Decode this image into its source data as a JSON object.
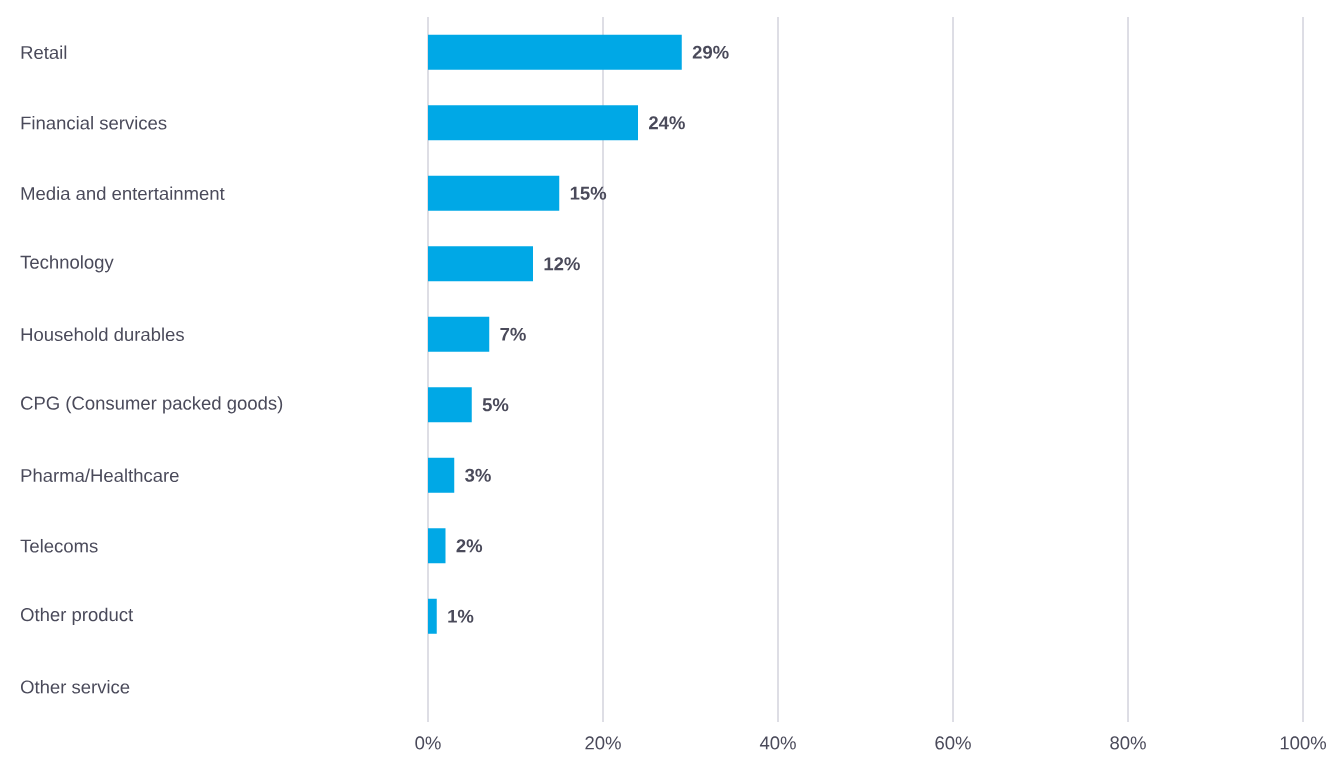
{
  "chart_data": {
    "type": "bar",
    "orientation": "horizontal",
    "categories": [
      "Retail",
      "Financial services",
      "Media and entertainment",
      "Technology",
      "Household durables",
      "CPG (Consumer packed goods)",
      "Pharma/Healthcare",
      "Telecoms",
      "Other product",
      "Other service"
    ],
    "values": [
      29,
      24,
      15,
      12,
      7,
      5,
      3,
      2,
      1,
      0
    ],
    "value_labels": [
      "29%",
      "24%",
      "15%",
      "12%",
      "7%",
      "5%",
      "3%",
      "2%",
      "1%",
      null
    ],
    "color": "#00a8e6",
    "xlim": [
      0,
      100
    ],
    "xticks": [
      {
        "value": 0,
        "label": "0%"
      },
      {
        "value": 20,
        "label": "20%"
      },
      {
        "value": 40,
        "label": "40%"
      },
      {
        "value": 60,
        "label": "60%"
      },
      {
        "value": 80,
        "label": "80%"
      },
      {
        "value": 100,
        "label": "100%"
      }
    ],
    "grid": "x"
  }
}
